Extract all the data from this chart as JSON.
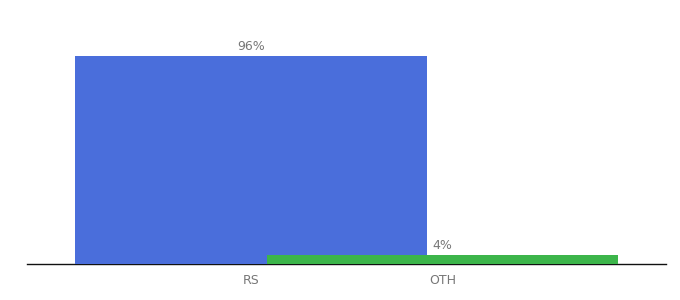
{
  "categories": [
    "RS",
    "OTH"
  ],
  "values": [
    96,
    4
  ],
  "bar_colors": [
    "#4A6EDB",
    "#3CB54A"
  ],
  "value_labels": [
    "96%",
    "4%"
  ],
  "ylim": [
    0,
    108
  ],
  "background_color": "#ffffff",
  "label_fontsize": 9,
  "tick_fontsize": 9,
  "label_color": "#777777",
  "bar_width": 0.55,
  "x_positions": [
    0.35,
    0.65
  ],
  "xlim": [
    0.0,
    1.0
  ]
}
